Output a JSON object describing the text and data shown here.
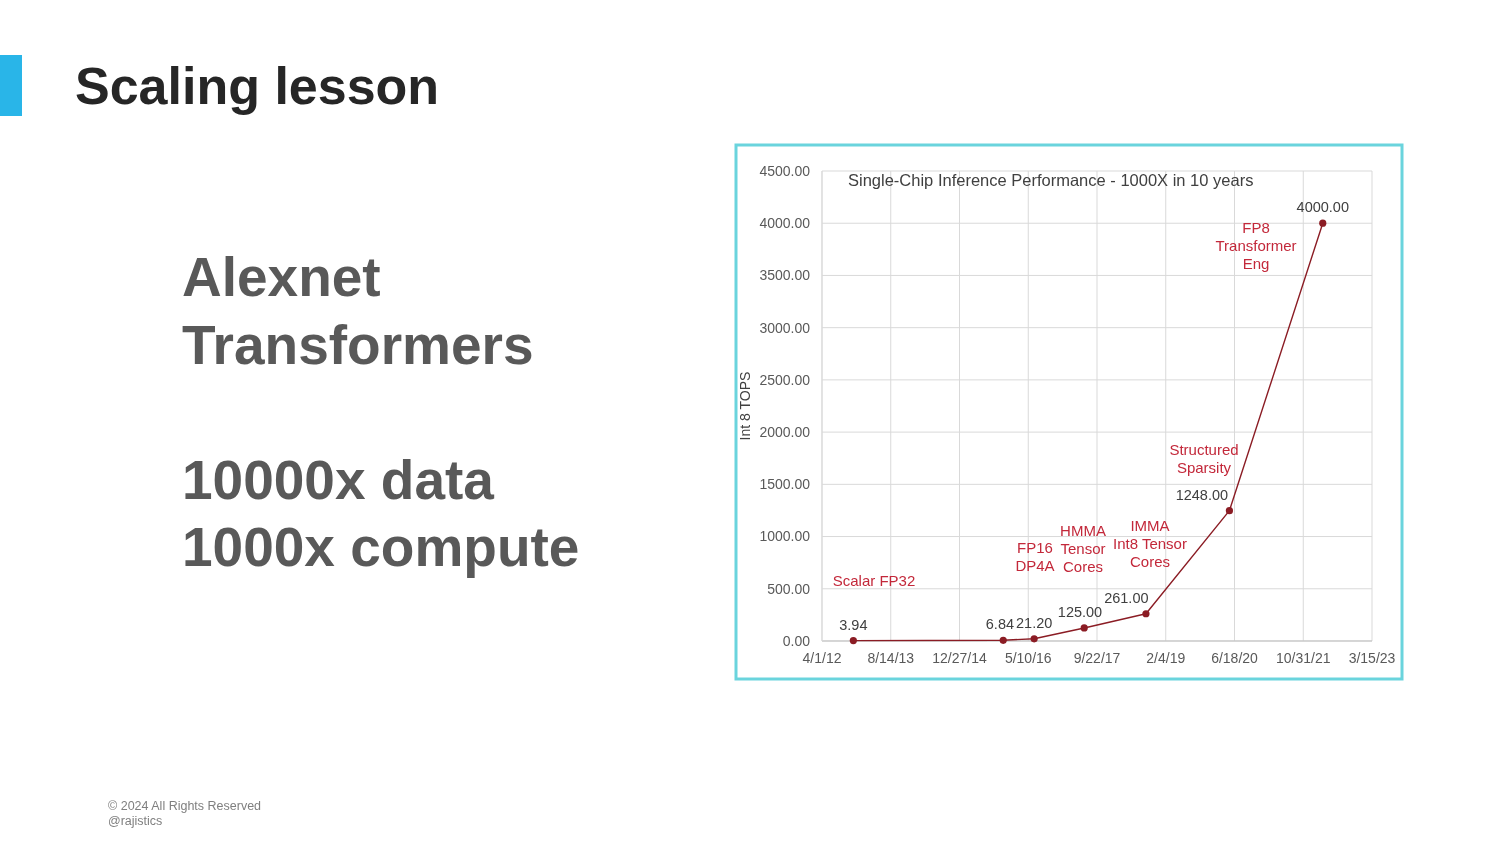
{
  "chart_data": [
    {
      "type": "other",
      "title": "Scaling lesson",
      "annotations": [
        "Alexnet\nTransformers\n\n10000x data\n1000x compute",
        "© 2024 All Rights Reserved\n@rajistics"
      ]
    },
    {
      "type": "line",
      "title": "Single-Chip Inference Performance - 1000X in 10 years",
      "ylabel": "Int 8 TOPS",
      "x": [
        "2012-11-15",
        "2015-11-10",
        "2016-06-22",
        "2017-06-21",
        "2018-09-13",
        "2020-05-12",
        "2022-03-22"
      ],
      "values": [
        3.94,
        6.84,
        21.2,
        125,
        261,
        1248,
        4000
      ],
      "value_labels": [
        "3.94",
        "6.84",
        "21.20",
        "125.00",
        "261.00",
        "1248.00",
        "4000.00"
      ],
      "color": "#8b1c24",
      "marker": "circle",
      "xlim": [
        "2012-04-01",
        "2023-03-15"
      ],
      "xticks": [
        {
          "value": "2012-04-01",
          "label": "4/1/12"
        },
        {
          "value": "2013-08-14",
          "label": "8/14/13"
        },
        {
          "value": "2014-12-27",
          "label": "12/27/14"
        },
        {
          "value": "2016-05-10",
          "label": "5/10/16"
        },
        {
          "value": "2017-09-22",
          "label": "9/22/17"
        },
        {
          "value": "2019-02-04",
          "label": "2/4/19"
        },
        {
          "value": "2020-06-18",
          "label": "6/18/20"
        },
        {
          "value": "2021-10-31",
          "label": "10/31/21"
        },
        {
          "value": "2023-03-15",
          "label": "3/15/23"
        }
      ],
      "ylim": [
        0,
        4500
      ],
      "yticks": [
        {
          "value": 0,
          "label": "0.00"
        },
        {
          "value": 500,
          "label": "500.00"
        },
        {
          "value": 1000,
          "label": "1000.00"
        },
        {
          "value": 1500,
          "label": "1500.00"
        },
        {
          "value": 2000,
          "label": "2000.00"
        },
        {
          "value": 2500,
          "label": "2500.00"
        },
        {
          "value": 3000,
          "label": "3000.00"
        },
        {
          "value": 3500,
          "label": "3500.00"
        },
        {
          "value": 4000,
          "label": "4000.00"
        },
        {
          "value": 4500,
          "label": "4500.00"
        }
      ],
      "grid": true,
      "annotations": [
        "Scalar FP32",
        "FP16\nDP4A",
        "HMMA\nTensor\nCores",
        "IMMA\nInt8 Tensor\nCores",
        "Structured\nSparsity",
        "FP8\nTransformer\nEng"
      ]
    }
  ]
}
